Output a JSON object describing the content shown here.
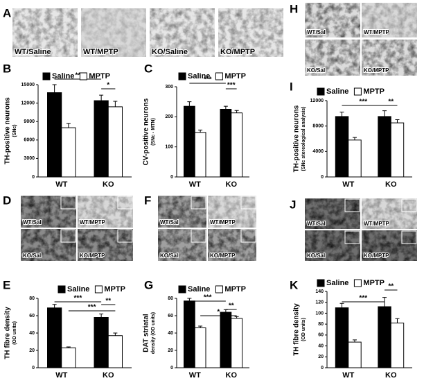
{
  "panel_letters": [
    "A",
    "H",
    "B",
    "C",
    "I",
    "D",
    "F",
    "J",
    "E",
    "G",
    "K"
  ],
  "image_labels": {
    "A": [
      "WT/Saline",
      "WT/MPTP",
      "KO/Saline",
      "KO/MPTP"
    ],
    "H": [
      "WT/Sal",
      "WT/MPTP",
      "KO/Sal",
      "KO/MPTP"
    ],
    "D": [
      "WT/Sal",
      "WT/MPTP",
      "KO/Sal",
      "KO/MPTP"
    ],
    "F": [
      "WT/Sal",
      "WT/MPTP",
      "KO/Sal",
      "KO/MPTP"
    ],
    "J": [
      "WT/Sal",
      "WT/MPTP",
      "KO/Sal",
      "KO/MPTP"
    ]
  },
  "chart_data": [
    {
      "type": "bar",
      "ylabel": "TH-positive neurons",
      "ylabel_note": "(SNc)",
      "categories": [
        "WT",
        "KO"
      ],
      "series": [
        {
          "name": "Saline",
          "color": "#000000",
          "values": [
            13700,
            12400
          ],
          "errors": [
            1300,
            900
          ]
        },
        {
          "name": "MPTP",
          "color": "#ffffff",
          "values": [
            8000,
            11400
          ],
          "errors": [
            700,
            900
          ]
        }
      ],
      "ylim": [
        0,
        15000
      ],
      "yticks": [
        0,
        3000,
        6000,
        9000,
        12000,
        15000
      ],
      "annotations": [
        "**",
        "*"
      ]
    },
    {
      "type": "bar",
      "ylabel": "CV-positive neurons",
      "ylabel_note": "(SNc - MTN)",
      "categories": [
        "WT",
        "KO"
      ],
      "series": [
        {
          "name": "Saline",
          "color": "#000000",
          "values": [
            235,
            225
          ],
          "errors": [
            15,
            10
          ]
        },
        {
          "name": "MPTP",
          "color": "#ffffff",
          "values": [
            148,
            213
          ],
          "errors": [
            8,
            8
          ]
        }
      ],
      "ylim": [
        0,
        300
      ],
      "yticks": [
        0,
        100,
        200,
        300
      ],
      "annotations": [
        "***",
        "***"
      ]
    },
    {
      "type": "bar",
      "ylabel": "TH-positive neurons",
      "ylabel_note": "(SNc stereological analysis)",
      "categories": [
        "WT",
        "KO"
      ],
      "series": [
        {
          "name": "Saline",
          "color": "#000000",
          "values": [
            9500,
            9500
          ],
          "errors": [
            700,
            900
          ]
        },
        {
          "name": "MPTP",
          "color": "#ffffff",
          "values": [
            5800,
            8500
          ],
          "errors": [
            400,
            500
          ]
        }
      ],
      "ylim": [
        0,
        12000
      ],
      "yticks": [
        0,
        4000,
        8000,
        12000
      ],
      "annotations": [
        "***",
        "**"
      ]
    },
    {
      "type": "bar",
      "ylabel": "TH fibre density",
      "ylabel_note": "(OD units)",
      "categories": [
        "WT",
        "KO"
      ],
      "series": [
        {
          "name": "Saline",
          "color": "#000000",
          "values": [
            69,
            58
          ],
          "errors": [
            4,
            4
          ]
        },
        {
          "name": "MPTP",
          "color": "#ffffff",
          "values": [
            23,
            37
          ],
          "errors": [
            1,
            3
          ]
        }
      ],
      "ylim": [
        0,
        80
      ],
      "yticks": [
        0,
        20,
        40,
        60,
        80
      ],
      "annotations": [
        "***",
        "**",
        "***"
      ]
    },
    {
      "type": "bar",
      "ylabel": "DAT striatal",
      "ylabel_note": "density (OD units)",
      "categories": [
        "WT",
        "KO"
      ],
      "series": [
        {
          "name": "Saline",
          "color": "#000000",
          "values": [
            77,
            64
          ],
          "errors": [
            3,
            3
          ]
        },
        {
          "name": "MPTP",
          "color": "#ffffff",
          "values": [
            46,
            57
          ],
          "errors": [
            2,
            2
          ]
        }
      ],
      "ylim": [
        0,
        80
      ],
      "yticks": [
        0,
        20,
        40,
        60,
        80
      ],
      "annotations": [
        "***",
        "**",
        "*"
      ]
    },
    {
      "type": "bar",
      "ylabel": "TH fibre density",
      "ylabel_note": "(OD units)",
      "categories": [
        "WT",
        "KO"
      ],
      "series": [
        {
          "name": "Saline",
          "color": "#000000",
          "values": [
            110,
            112
          ],
          "errors": [
            8,
            17
          ]
        },
        {
          "name": "MPTP",
          "color": "#ffffff",
          "values": [
            47,
            82
          ],
          "errors": [
            4,
            8
          ]
        }
      ],
      "ylim": [
        0,
        140
      ],
      "yticks": [
        0,
        20,
        40,
        60,
        80,
        100,
        120,
        140
      ],
      "annotations": [
        "***",
        "**"
      ]
    }
  ]
}
